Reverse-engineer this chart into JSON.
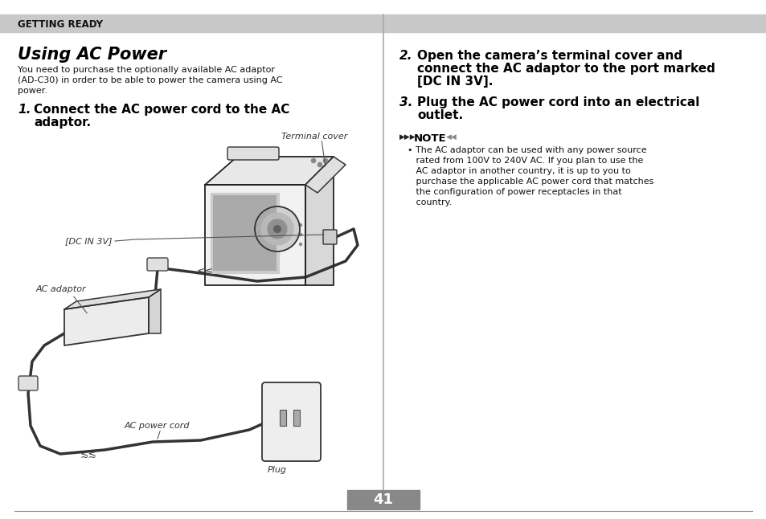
{
  "bg_color": "#ffffff",
  "header_bg": "#c8c8c8",
  "header_text": "GETTING READY",
  "title": "Using AC Power",
  "intro_text": "You need to purchase the optionally available AC adaptor\n(AD-C30) in order to be able to power the camera using AC\npower.",
  "step1_num": "1.",
  "step1_text": "Connect the AC power cord to the AC\nadaptor.",
  "step2_num": "2.",
  "step2_text": "Open the camera’s terminal cover and\nconnect the AC adaptor to the port marked\n[DC IN 3V].",
  "step3_num": "3.",
  "step3_text": "Plug the AC power cord into an electrical\noutlet.",
  "note_label": "NOTE",
  "note_text": "The AC adaptor can be used with any power source\nrated from 100V to 240V AC. If you plan to use the\nAC adaptor in another country, it is up to you to\npurchase the applicable AC power cord that matches\nthe configuration of power receptacles in that\ncountry.",
  "page_number": "41",
  "label_terminal_cover": "Terminal cover",
  "label_dc_in": "[DC IN 3V]",
  "label_ac_adaptor": "AC adaptor",
  "label_ac_cord": "AC power cord",
  "label_plug": "Plug"
}
